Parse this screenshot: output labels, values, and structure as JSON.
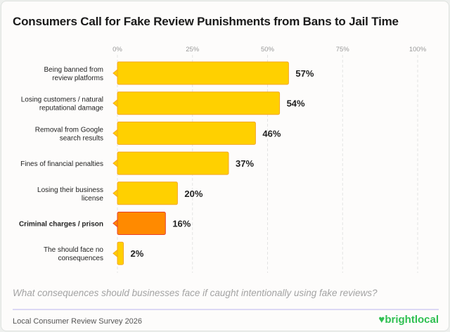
{
  "title": "Consumers Call for Fake Review Punishments from Bans to Jail Time",
  "question": "What consequences should businesses face if caught intentionally using fake reviews?",
  "footer": "Local Consumer Review Survey 2026",
  "logo": "brightlocal",
  "colors": {
    "bar": "#ffd000",
    "bar_border": "#f5a623",
    "highlight": "#ff8a00",
    "highlight_border": "#e8402a",
    "logo": "#2fc052"
  },
  "chart_data": {
    "type": "bar",
    "orientation": "horizontal",
    "categories": [
      [
        "Being banned from",
        "review platforms"
      ],
      [
        "Losing customers / natural",
        "reputational damage"
      ],
      [
        "Removal from Google",
        "search results"
      ],
      [
        "Fines of financial penalties"
      ],
      [
        "Losing their business",
        "license"
      ],
      [
        "Criminal charges / prison"
      ],
      [
        "The should face no",
        "consequences"
      ]
    ],
    "values": [
      57,
      54,
      46,
      37,
      20,
      16,
      2
    ],
    "data_labels": [
      "57%",
      "54%",
      "46%",
      "37%",
      "20%",
      "16%",
      "2%"
    ],
    "highlighted_index": 5,
    "xlim": [
      0,
      100
    ],
    "xticks": [
      "0%",
      "25%",
      "50%",
      "75%",
      "100%"
    ],
    "tick_values": [
      0,
      25,
      50,
      75,
      100
    ],
    "grid": true
  }
}
